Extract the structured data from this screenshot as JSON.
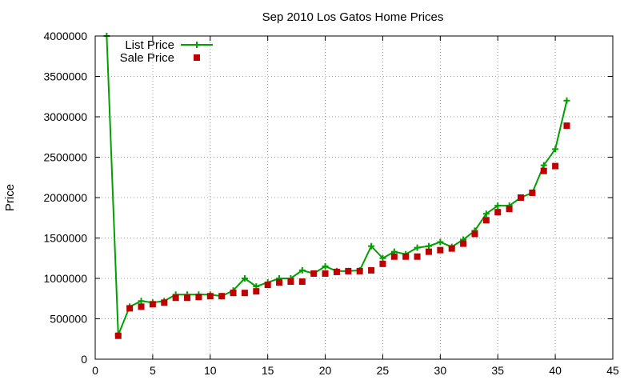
{
  "chart_data": {
    "type": "line",
    "title": "Sep 2010 Los Gatos Home Prices",
    "xlabel": "",
    "ylabel": "Price",
    "xlim": [
      0,
      45
    ],
    "ylim": [
      0,
      4000000
    ],
    "x_ticks": [
      0,
      5,
      10,
      15,
      20,
      25,
      30,
      35,
      40,
      45
    ],
    "y_ticks": [
      0,
      500000,
      1000000,
      1500000,
      2000000,
      2500000,
      3000000,
      3500000,
      4000000
    ],
    "grid": true,
    "legend_position": "top-left",
    "series": [
      {
        "name": "List Price",
        "style": "line+plus",
        "color": "#00a000",
        "x": [
          1,
          2,
          3,
          4,
          5,
          6,
          7,
          8,
          9,
          10,
          11,
          12,
          13,
          14,
          15,
          16,
          17,
          18,
          19,
          20,
          21,
          22,
          23,
          24,
          25,
          26,
          27,
          28,
          29,
          30,
          31,
          32,
          33,
          34,
          35,
          36,
          37,
          38,
          39,
          40,
          41
        ],
        "values": [
          4000000,
          300000,
          650000,
          720000,
          700000,
          720000,
          800000,
          800000,
          800000,
          800000,
          780000,
          850000,
          1000000,
          900000,
          950000,
          1000000,
          1000000,
          1100000,
          1060000,
          1150000,
          1090000,
          1090000,
          1100000,
          1400000,
          1250000,
          1330000,
          1300000,
          1380000,
          1400000,
          1450000,
          1390000,
          1480000,
          1590000,
          1800000,
          1900000,
          1900000,
          2000000,
          2060000,
          2400000,
          2600000,
          3200000
        ]
      },
      {
        "name": "Sale Price",
        "style": "square",
        "color": "#c00000",
        "x": [
          2,
          3,
          4,
          5,
          6,
          7,
          8,
          9,
          10,
          11,
          12,
          13,
          14,
          15,
          16,
          17,
          18,
          19,
          20,
          21,
          22,
          23,
          24,
          25,
          26,
          27,
          28,
          29,
          30,
          31,
          32,
          33,
          34,
          35,
          36,
          37,
          38,
          39,
          40,
          41
        ],
        "values": [
          290000,
          630000,
          650000,
          680000,
          700000,
          760000,
          760000,
          770000,
          780000,
          780000,
          820000,
          820000,
          840000,
          920000,
          950000,
          960000,
          960000,
          1060000,
          1060000,
          1080000,
          1090000,
          1090000,
          1100000,
          1180000,
          1270000,
          1270000,
          1270000,
          1330000,
          1350000,
          1370000,
          1430000,
          1550000,
          1720000,
          1820000,
          1860000,
          2000000,
          2060000,
          2330000,
          2390000,
          2890000
        ]
      }
    ]
  }
}
